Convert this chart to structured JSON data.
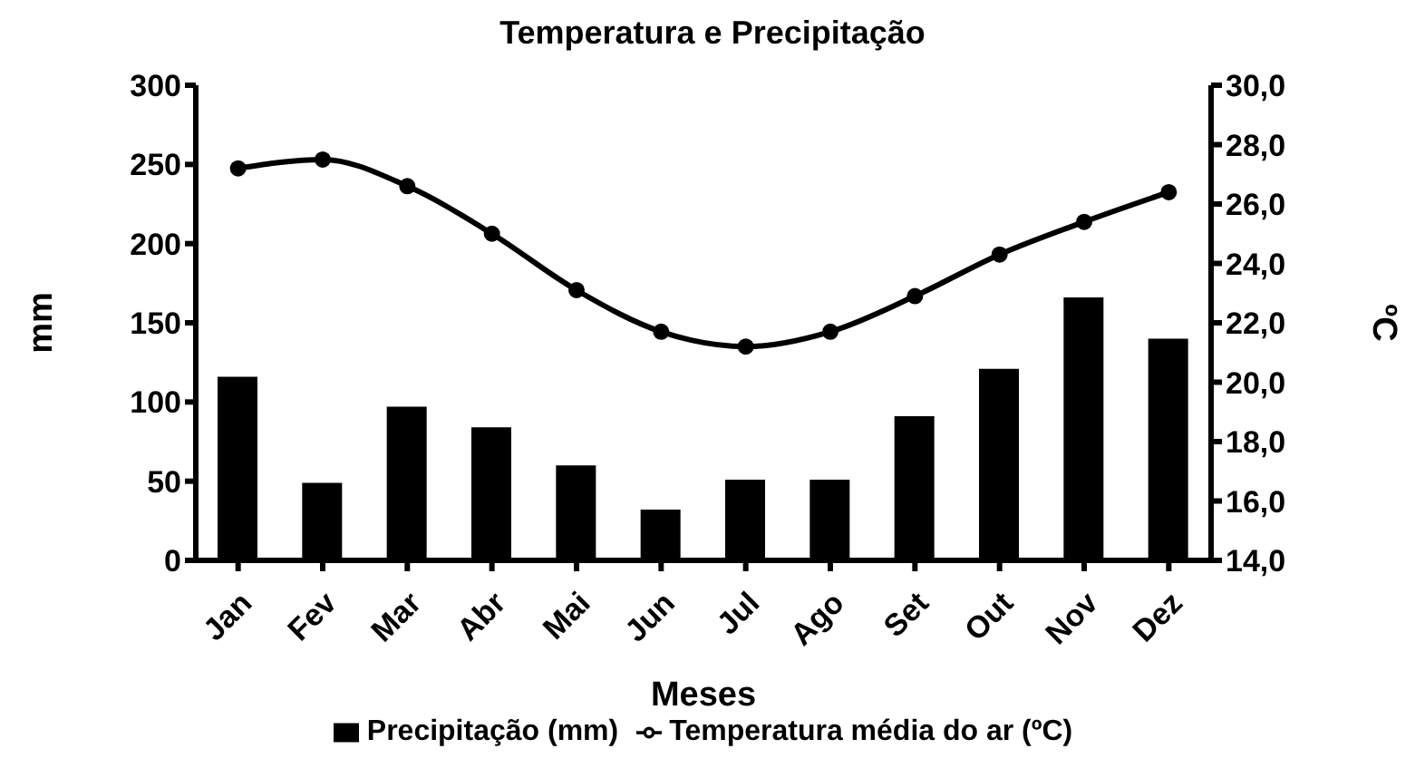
{
  "chart_data": {
    "type": "bar",
    "title": "Temperatura e Precipitação",
    "xlabel": "Meses",
    "ylabel": "mm",
    "y2label": "ºC",
    "categories": [
      "Jan",
      "Fev",
      "Mar",
      "Abr",
      "Mai",
      "Jun",
      "Jul",
      "Ago",
      "Set",
      "Out",
      "Nov",
      "Dez"
    ],
    "series": [
      {
        "name": "Precipitação (mm)",
        "color": "#000000",
        "values": [
          116,
          49,
          97,
          84,
          60,
          32,
          51,
          51,
          91,
          121,
          166,
          140
        ]
      },
      {
        "name": "Temperatura média do ar (ºC)",
        "type": "line",
        "axis": "y2",
        "color": "#000000",
        "marker": "circle",
        "values": [
          27.2,
          27.5,
          26.6,
          25.0,
          23.1,
          21.7,
          21.2,
          21.7,
          22.9,
          24.3,
          25.4,
          26.4
        ]
      }
    ],
    "ylim": [
      0,
      300
    ],
    "yticks": [
      0,
      50,
      100,
      150,
      200,
      250,
      300
    ],
    "y2lim": [
      14,
      30
    ],
    "y2ticks": [
      {
        "value": 14,
        "label": "14,0"
      },
      {
        "value": 16,
        "label": "16,0"
      },
      {
        "value": 18,
        "label": "18,0"
      },
      {
        "value": 20,
        "label": "20,0"
      },
      {
        "value": 22,
        "label": "22,0"
      },
      {
        "value": 24,
        "label": "24,0"
      },
      {
        "value": 26,
        "label": "26,0"
      },
      {
        "value": 28,
        "label": "28,0"
      },
      {
        "value": 30,
        "label": "30,0"
      }
    ],
    "grid": false,
    "legend": "bottom"
  }
}
